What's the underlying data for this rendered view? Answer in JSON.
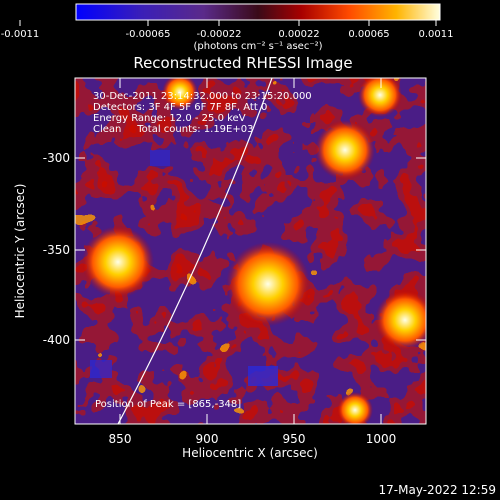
{
  "colorbar": {
    "ticks": [
      "-0.0011",
      "-0.00065",
      "-0.00022",
      "0.00022",
      "0.00065",
      "0.0011"
    ],
    "unit_label": "(photons cm⁻² s⁻¹ asec⁻²)"
  },
  "title": "Reconstructed RHESSI Image",
  "info": {
    "line1": "30-Dec-2011 23:14:32.000 to 23:15:20.000",
    "line2": "Detectors: 3F 4F 5F 6F 7F 8F, Att 0",
    "line3": "Energy Range: 12.0 - 25.0 keV",
    "line4": "Clean     Total counts: 1.19E+03"
  },
  "peak_label": "Position of Peak = [865,-348]",
  "x_axis": {
    "label": "Heliocentric X (arcsec)",
    "ticks": [
      "850",
      "900",
      "950",
      "1000"
    ]
  },
  "y_axis": {
    "label": "Heliocentric Y (arcsec)",
    "ticks": [
      "-300",
      "-350",
      "-400"
    ]
  },
  "timestamp": "17-May-2022 12:59"
}
